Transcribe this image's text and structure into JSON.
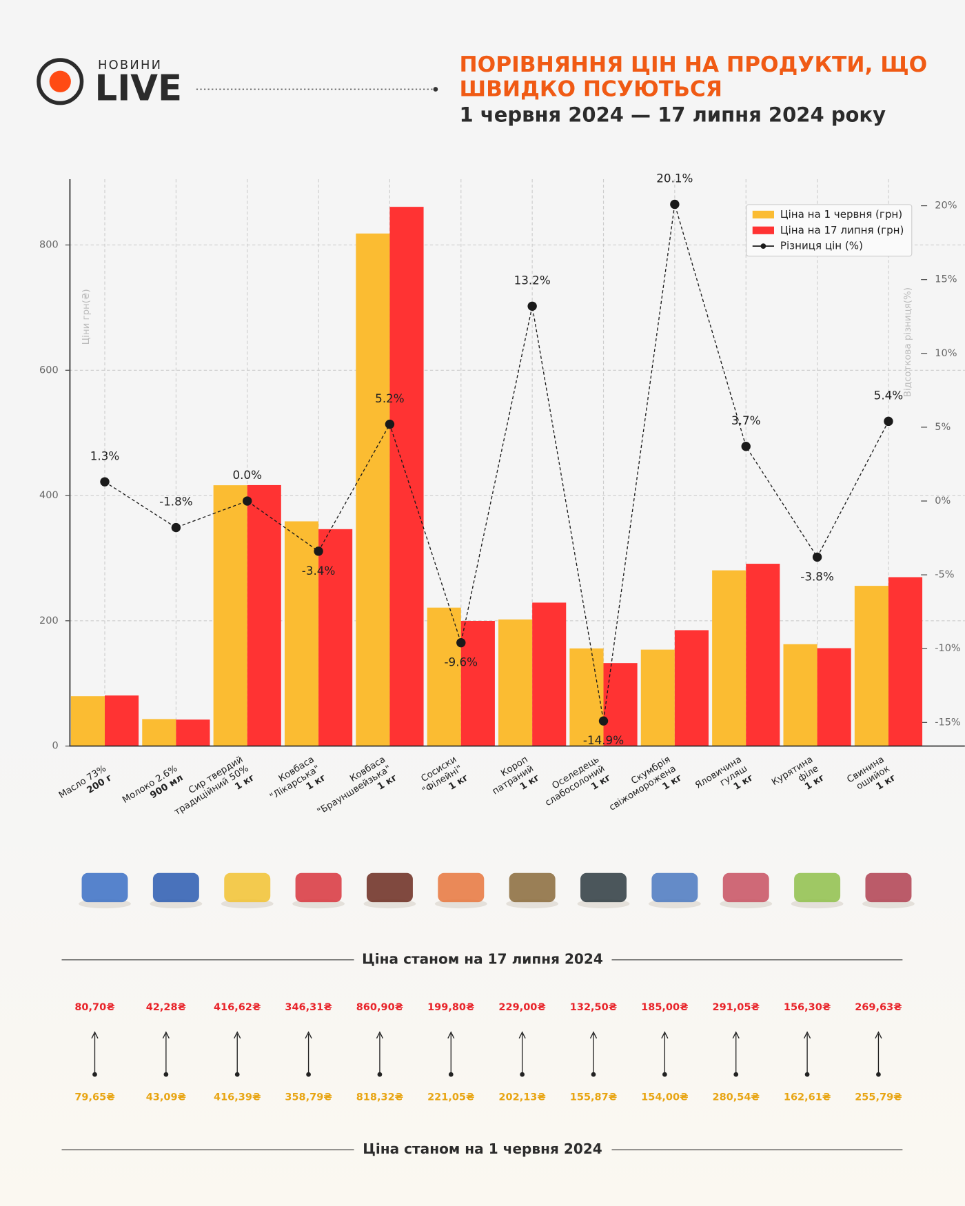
{
  "header": {
    "brand_top": "НОВИНИ",
    "brand": "LIVE"
  },
  "chart_data": {
    "type": "bar-line",
    "title": [
      "ПОРІВНЯННЯ ЦІН НА ПРОДУКТИ, ЩО",
      "ШВИДКО ПСУЮТЬСЯ"
    ],
    "subtitle": "1 червня 2024 — 17 липня 2024 року",
    "y_label": "Ціни грн(₴)",
    "y2_label": "Відсоткова різниця(%)",
    "categories": [
      [
        "Масло 73%"
      ],
      [
        "Молоко 2.6%"
      ],
      [
        "Сир твердий",
        "традиційний 50%"
      ],
      [
        "Ковбаса",
        "\"Лікарська\""
      ],
      [
        "Ковбаса",
        "\"Брауншвейзька\""
      ],
      [
        "Сосиски",
        "\"Філейні\""
      ],
      [
        "Короп",
        "патраний"
      ],
      [
        "Оселедець",
        "слабосолоний"
      ],
      [
        "Скумбрія",
        "свіжоморожена"
      ],
      [
        "Яловичина",
        "гуляш"
      ],
      [
        "Курятина",
        "філе"
      ],
      [
        "Свинина",
        "ошийок"
      ]
    ],
    "units": [
      "200 г",
      "900 мл",
      "1 кг",
      "1 кг",
      "1 кг",
      "1 кг",
      "1 кг",
      "1 кг",
      "1 кг",
      "1 кг",
      "1 кг",
      "1 кг"
    ],
    "series": [
      {
        "name": "Ціна на 1 червня (грн)",
        "color": "#fbbc32",
        "label_color": "#e8a514",
        "values": [
          79.65,
          43.09,
          416.39,
          358.79,
          818.32,
          221.05,
          202.13,
          155.87,
          154.0,
          280.54,
          162.61,
          255.79
        ],
        "value_labels": [
          "79,65₴",
          "43,09₴",
          "416,39₴",
          "358,79₴",
          "818,32₴",
          "221,05₴",
          "202,13₴",
          "155,87₴",
          "154,00₴",
          "280,54₴",
          "162,61₴",
          "255,79₴"
        ]
      },
      {
        "name": "Ціна на 17 липня (грн)",
        "color": "#ff3333",
        "label_color": "#e8242a",
        "values": [
          80.7,
          42.28,
          416.62,
          346.31,
          860.9,
          199.8,
          229.0,
          132.5,
          185.0,
          291.05,
          156.3,
          269.63
        ],
        "value_labels": [
          "80,70₴",
          "42,28₴",
          "416,62₴",
          "346,31₴",
          "860,90₴",
          "199,80₴",
          "229,00₴",
          "132,50₴",
          "185,00₴",
          "291,05₴",
          "156,30₴",
          "269,63₴"
        ]
      },
      {
        "name": "Різниця цін (%)",
        "color": "#1a1a1a",
        "axis": "y2",
        "values": [
          1.3,
          -1.8,
          0.0,
          -3.4,
          5.2,
          -9.6,
          13.2,
          -14.9,
          20.1,
          3.7,
          -3.8,
          5.4
        ],
        "value_labels": [
          "1.3%",
          "-1.8%",
          "0.0%",
          "-3.4%",
          "5.2%",
          "-9.6%",
          "13.2%",
          "-14.9%",
          "20.1%",
          "3.7%",
          "-3.8%",
          "5.4%"
        ]
      }
    ],
    "ylim": [
      0,
      905
    ],
    "yticks": [
      0,
      200,
      400,
      600,
      800
    ],
    "y2lim": [
      -16.6,
      21.8
    ],
    "y2ticks": [
      {
        "value": -15,
        "label": "-15%"
      },
      {
        "value": -10,
        "label": "-10%"
      },
      {
        "value": -5,
        "label": "-5%"
      },
      {
        "value": 0,
        "label": "0%"
      },
      {
        "value": 5,
        "label": "5%"
      },
      {
        "value": 10,
        "label": "10%"
      },
      {
        "value": 15,
        "label": "15%"
      },
      {
        "value": 20,
        "label": "20%"
      }
    ],
    "grid": true,
    "legend": "upper right",
    "section_new": "Ціна станом на 17 липня 2024",
    "section_old": "Ціна станом на 1 червня 2024"
  }
}
